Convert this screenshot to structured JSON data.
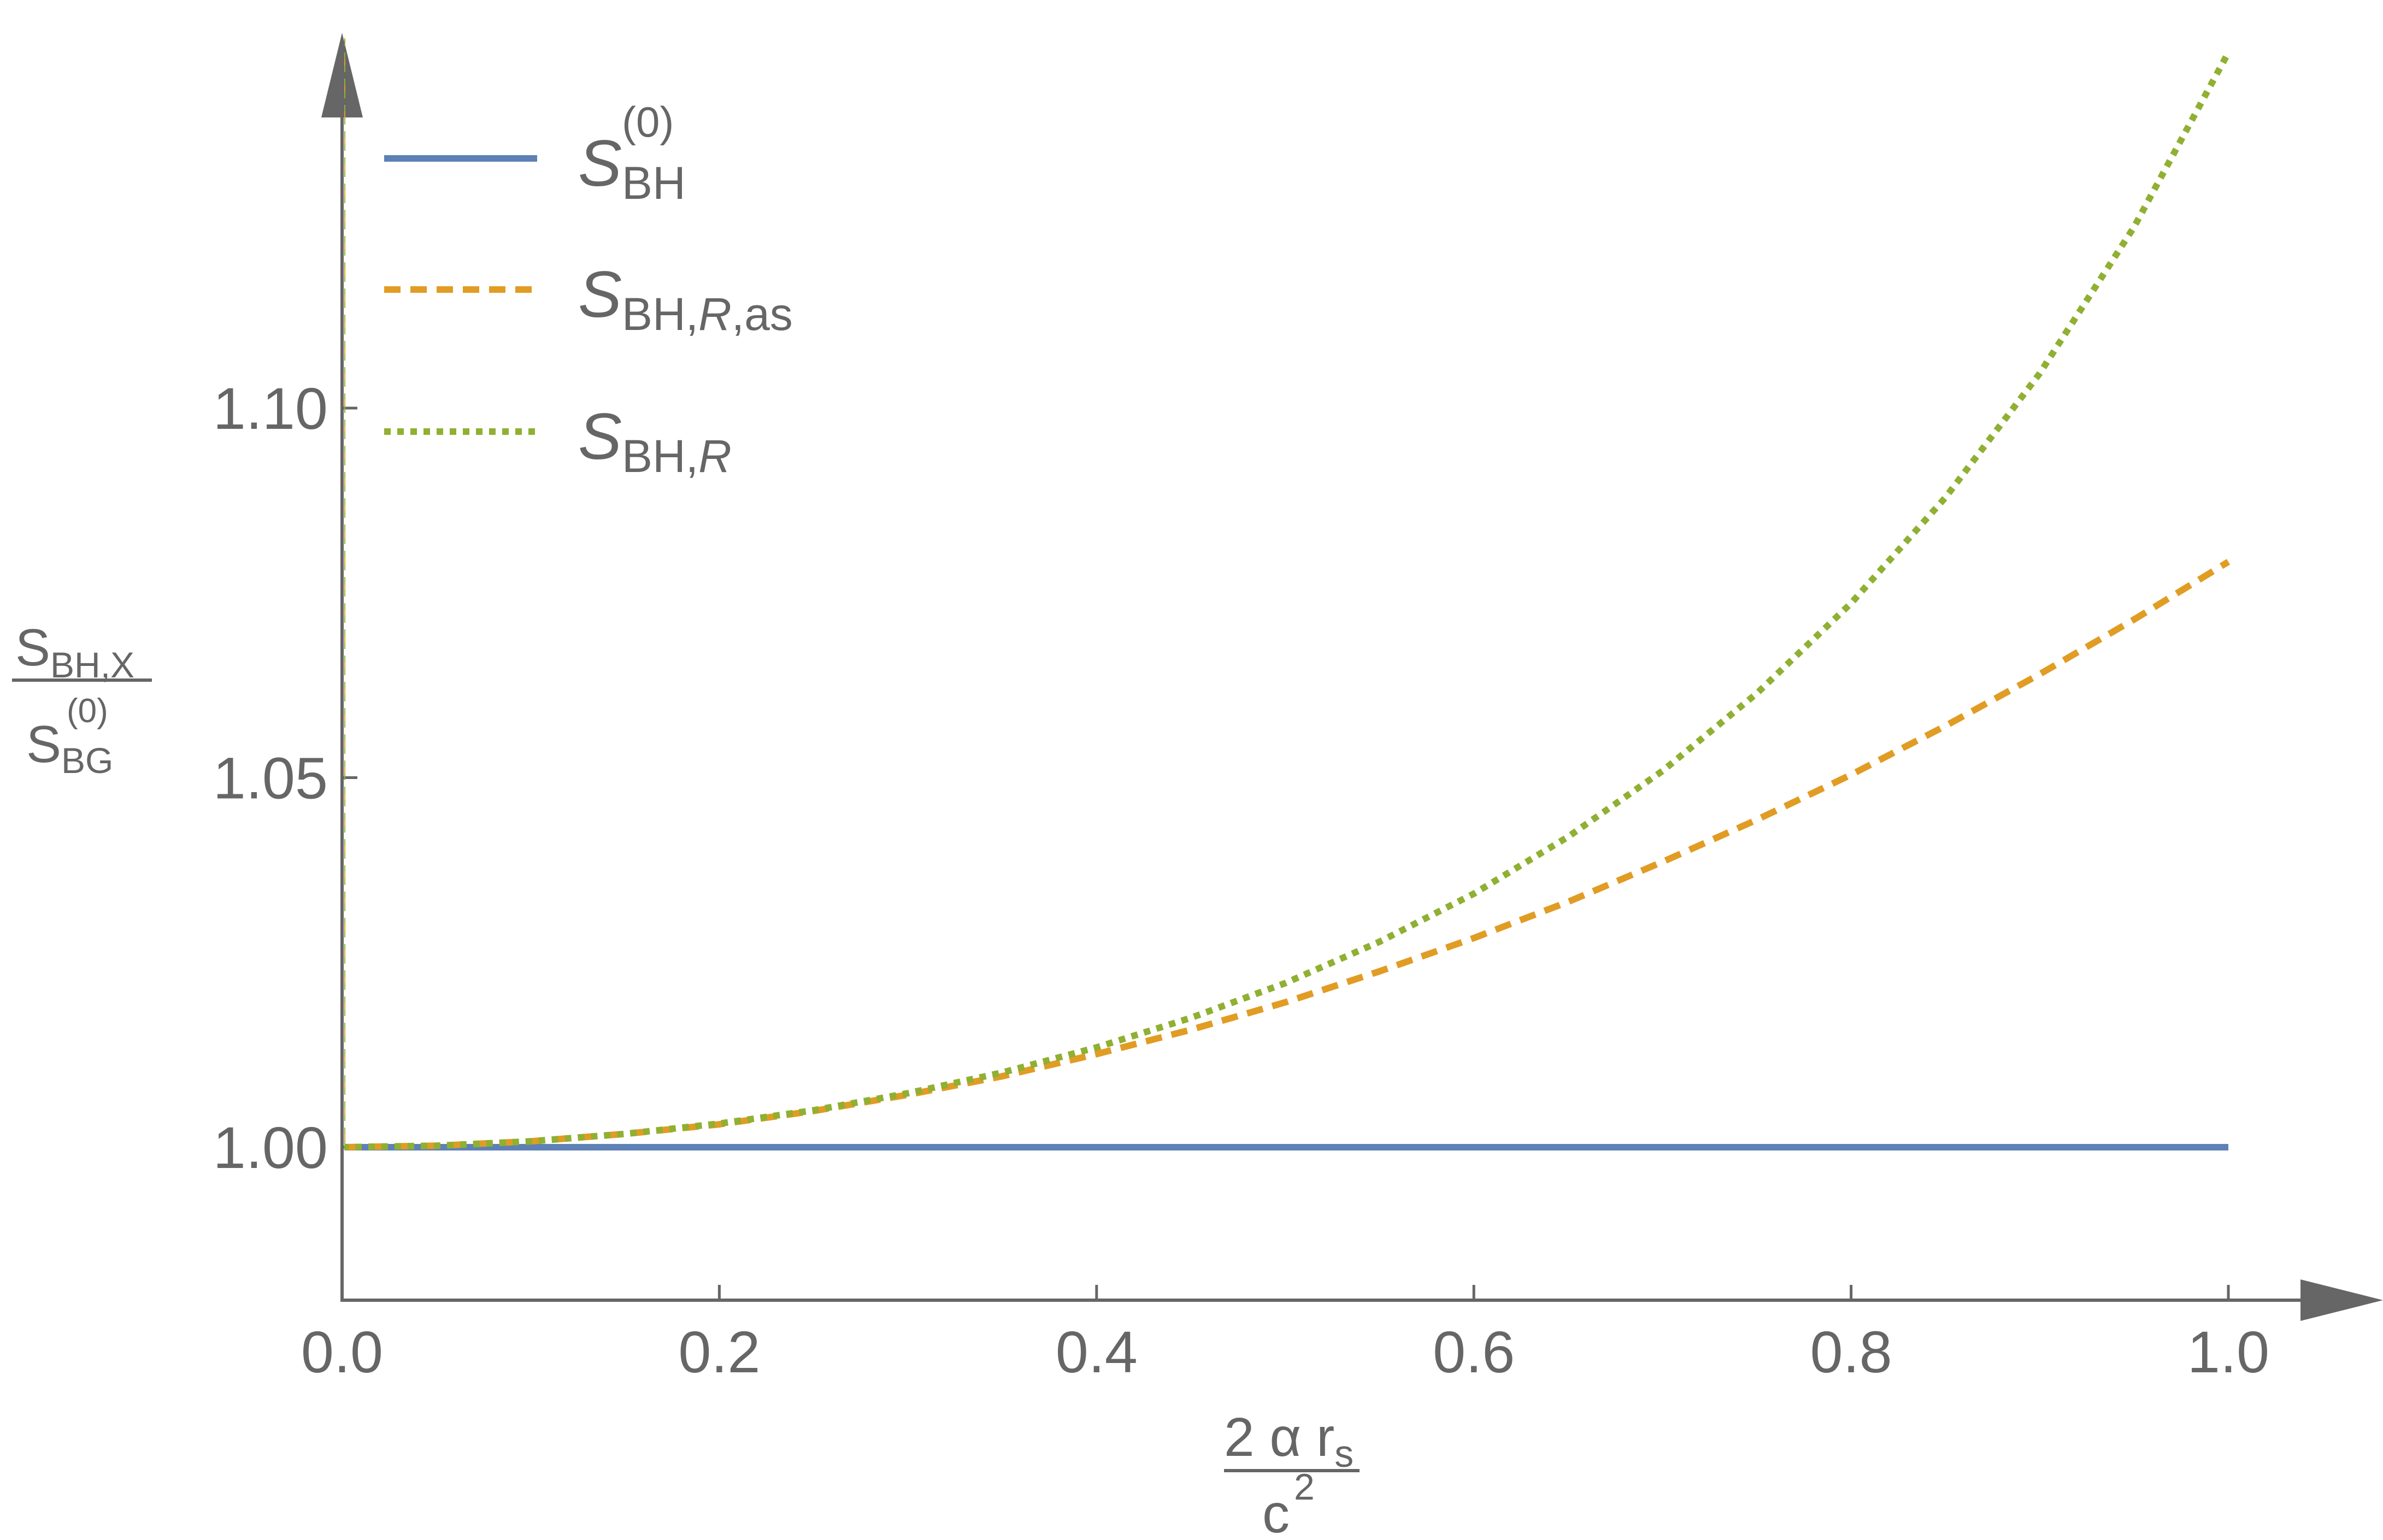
{
  "chart_data": {
    "type": "line",
    "title": "",
    "x": [
      0.0,
      0.05,
      0.1,
      0.15,
      0.2,
      0.25,
      0.3,
      0.35,
      0.4,
      0.45,
      0.5,
      0.55,
      0.6,
      0.65,
      0.7,
      0.75,
      0.8,
      0.85,
      0.9,
      0.95,
      1.0
    ],
    "series": [
      {
        "name": "S_BH^(0)",
        "style": "solid",
        "color": "#5E81B5",
        "values": [
          1.0,
          1.0,
          1.0,
          1.0,
          1.0,
          1.0,
          1.0,
          1.0,
          1.0,
          1.0,
          1.0,
          1.0,
          1.0,
          1.0,
          1.0,
          1.0,
          1.0,
          1.0,
          1.0,
          1.0,
          1.0
        ]
      },
      {
        "name": "S_BH,R,as",
        "style": "dashed",
        "color": "#E19C24",
        "values": [
          1.0,
          1.0002,
          1.0008,
          1.0018,
          1.0031,
          1.0049,
          1.0071,
          1.0096,
          1.0126,
          1.0159,
          1.0196,
          1.0238,
          1.0283,
          1.0332,
          1.0386,
          1.0443,
          1.0504,
          1.057,
          1.064,
          1.0714,
          1.0792
        ]
      },
      {
        "name": "S_BH,R",
        "style": "dotted",
        "color": "#8FB032",
        "values": [
          1.0,
          1.0002,
          1.0008,
          1.0018,
          1.0032,
          1.005,
          1.0073,
          1.0101,
          1.0135,
          1.0175,
          1.0222,
          1.0278,
          1.0343,
          1.042,
          1.0509,
          1.0614,
          1.0736,
          1.0879,
          1.1047,
          1.1245,
          1.1481
        ]
      }
    ],
    "xlim": [
      0.0,
      1.0
    ],
    "ylim": [
      0.98,
      1.15
    ],
    "x_ticks": [
      "0.0",
      "0.2",
      "0.4",
      "0.6",
      "0.8",
      "1.0"
    ],
    "y_ticks": [
      "1.00",
      "1.05",
      "1.10"
    ],
    "xlabel": {
      "num_prefix": "2 α r",
      "num_sub": "s",
      "den": "c",
      "den_sup": "2"
    },
    "ylabel": {
      "num": "S",
      "num_sub": "BH,X",
      "den": "S",
      "den_sub": "BG",
      "den_sup": "(0)"
    },
    "legend": {
      "position": "top-left",
      "entries": [
        {
          "main": "S",
          "sub": "BH",
          "sup": "(0)",
          "sub_italic": "",
          "sub_rest": ""
        },
        {
          "main": "S",
          "sub": "BH,",
          "sup": "",
          "sub_italic": "R",
          "sub_rest": ",as"
        },
        {
          "main": "S",
          "sub": "BH,",
          "sup": "",
          "sub_italic": "R",
          "sub_rest": ""
        }
      ]
    },
    "colors": {
      "axis": "#666666",
      "background": "#FFFFFF"
    }
  }
}
